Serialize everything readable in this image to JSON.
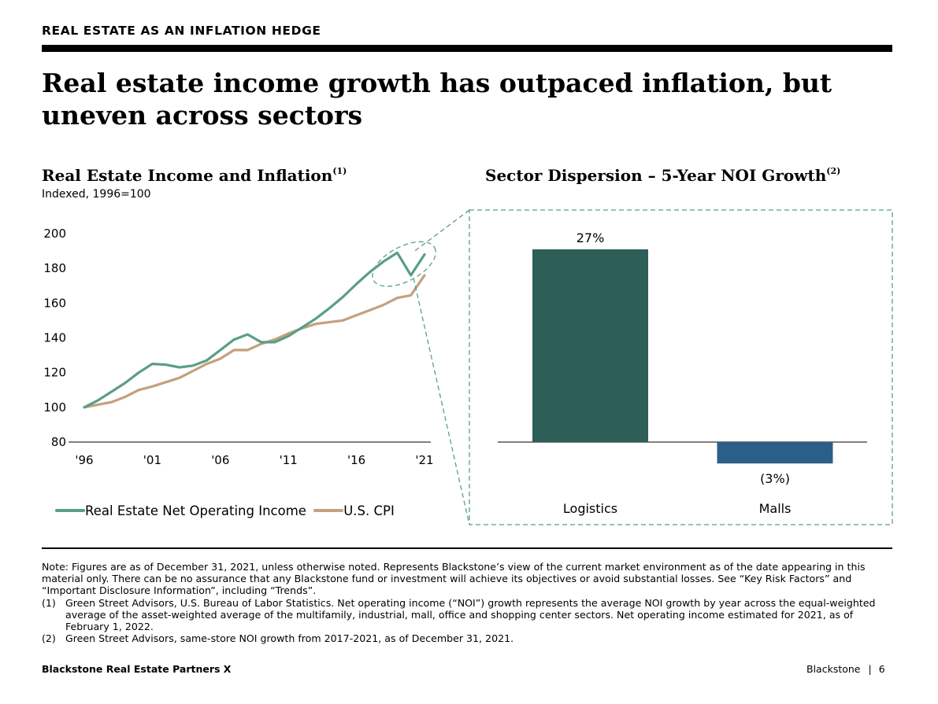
{
  "header": {
    "kicker": "REAL ESTATE AS AN INFLATION HEDGE",
    "headline": "Real estate income growth has outpaced inflation, but uneven across sectors"
  },
  "colors": {
    "noi": "#5a9e88",
    "cpi": "#c4a07e",
    "logistics": "#2d5e58",
    "malls": "#2b5f8a",
    "callout": "#5a9e88"
  },
  "chart_data": [
    {
      "type": "line",
      "title": "Real Estate Income and Inflation",
      "title_note": "(1)",
      "subtitle": "Indexed, 1996=100",
      "x": [
        1996,
        1997,
        1998,
        1999,
        2000,
        2001,
        2002,
        2003,
        2004,
        2005,
        2006,
        2007,
        2008,
        2009,
        2010,
        2011,
        2012,
        2013,
        2014,
        2015,
        2016,
        2017,
        2018,
        2019,
        2020,
        2021
      ],
      "x_tick_labels": [
        "'96",
        "'01",
        "'06",
        "'11",
        "'16",
        "'21"
      ],
      "x_ticks": [
        1996,
        2001,
        2006,
        2011,
        2016,
        2021
      ],
      "y_ticks": [
        80,
        100,
        120,
        140,
        160,
        180,
        200
      ],
      "ylim": [
        80,
        200
      ],
      "grid": false,
      "legend_position": "bottom",
      "series": [
        {
          "name": "Real Estate Net Operating Income",
          "color_key": "noi",
          "values": [
            100,
            104,
            109,
            114,
            120,
            125,
            124.5,
            123,
            124,
            127,
            133,
            139,
            142,
            137.5,
            137.5,
            141,
            146,
            151,
            157,
            163.5,
            171,
            178,
            184,
            189,
            176,
            188
          ]
        },
        {
          "name": "U.S. CPI",
          "color_key": "cpi",
          "values": [
            100,
            101.5,
            103,
            106,
            110,
            112,
            114.5,
            117,
            121,
            125,
            128,
            133,
            133,
            136.5,
            139,
            142.5,
            145.5,
            148,
            149,
            150,
            153,
            156,
            159,
            163,
            164.5,
            176
          ]
        }
      ]
    },
    {
      "type": "bar",
      "title": "Sector Dispersion – 5-Year NOI Growth",
      "title_note": "(2)",
      "categories": [
        "Logistics",
        "Malls"
      ],
      "values": [
        27,
        -3
      ],
      "value_labels": [
        "27%",
        "(3%)"
      ],
      "color_keys": [
        "logistics",
        "malls"
      ],
      "ylim": [
        -3,
        27
      ]
    }
  ],
  "notes": [
    {
      "num": "",
      "text": "Note: Figures are as of December 31, 2021, unless otherwise noted. Represents Blackstone’s view of the current market environment as of the date appearing in this material only. There can be no assurance that any Blackstone fund or investment will achieve its objectives or avoid substantial losses. See “Key Risk Factors” and “Important Disclosure Information”, including “Trends”."
    },
    {
      "num": "(1)",
      "text": "Green Street Advisors, U.S. Bureau of Labor Statistics. Net operating income (“NOI”) growth represents the average NOI growth by year across the equal-weighted average of the asset-weighted average of the multifamily, industrial, mall, office and shopping center sectors. Net operating income estimated for 2021, as of February 1, 2022."
    },
    {
      "num": "(2)",
      "text": "Green Street Advisors, same-store NOI growth from 2017-2021, as of December 31, 2021."
    }
  ],
  "footer": {
    "left": "Blackstone Real Estate Partners X",
    "brand": "Blackstone",
    "separator": "|",
    "page": "6"
  }
}
